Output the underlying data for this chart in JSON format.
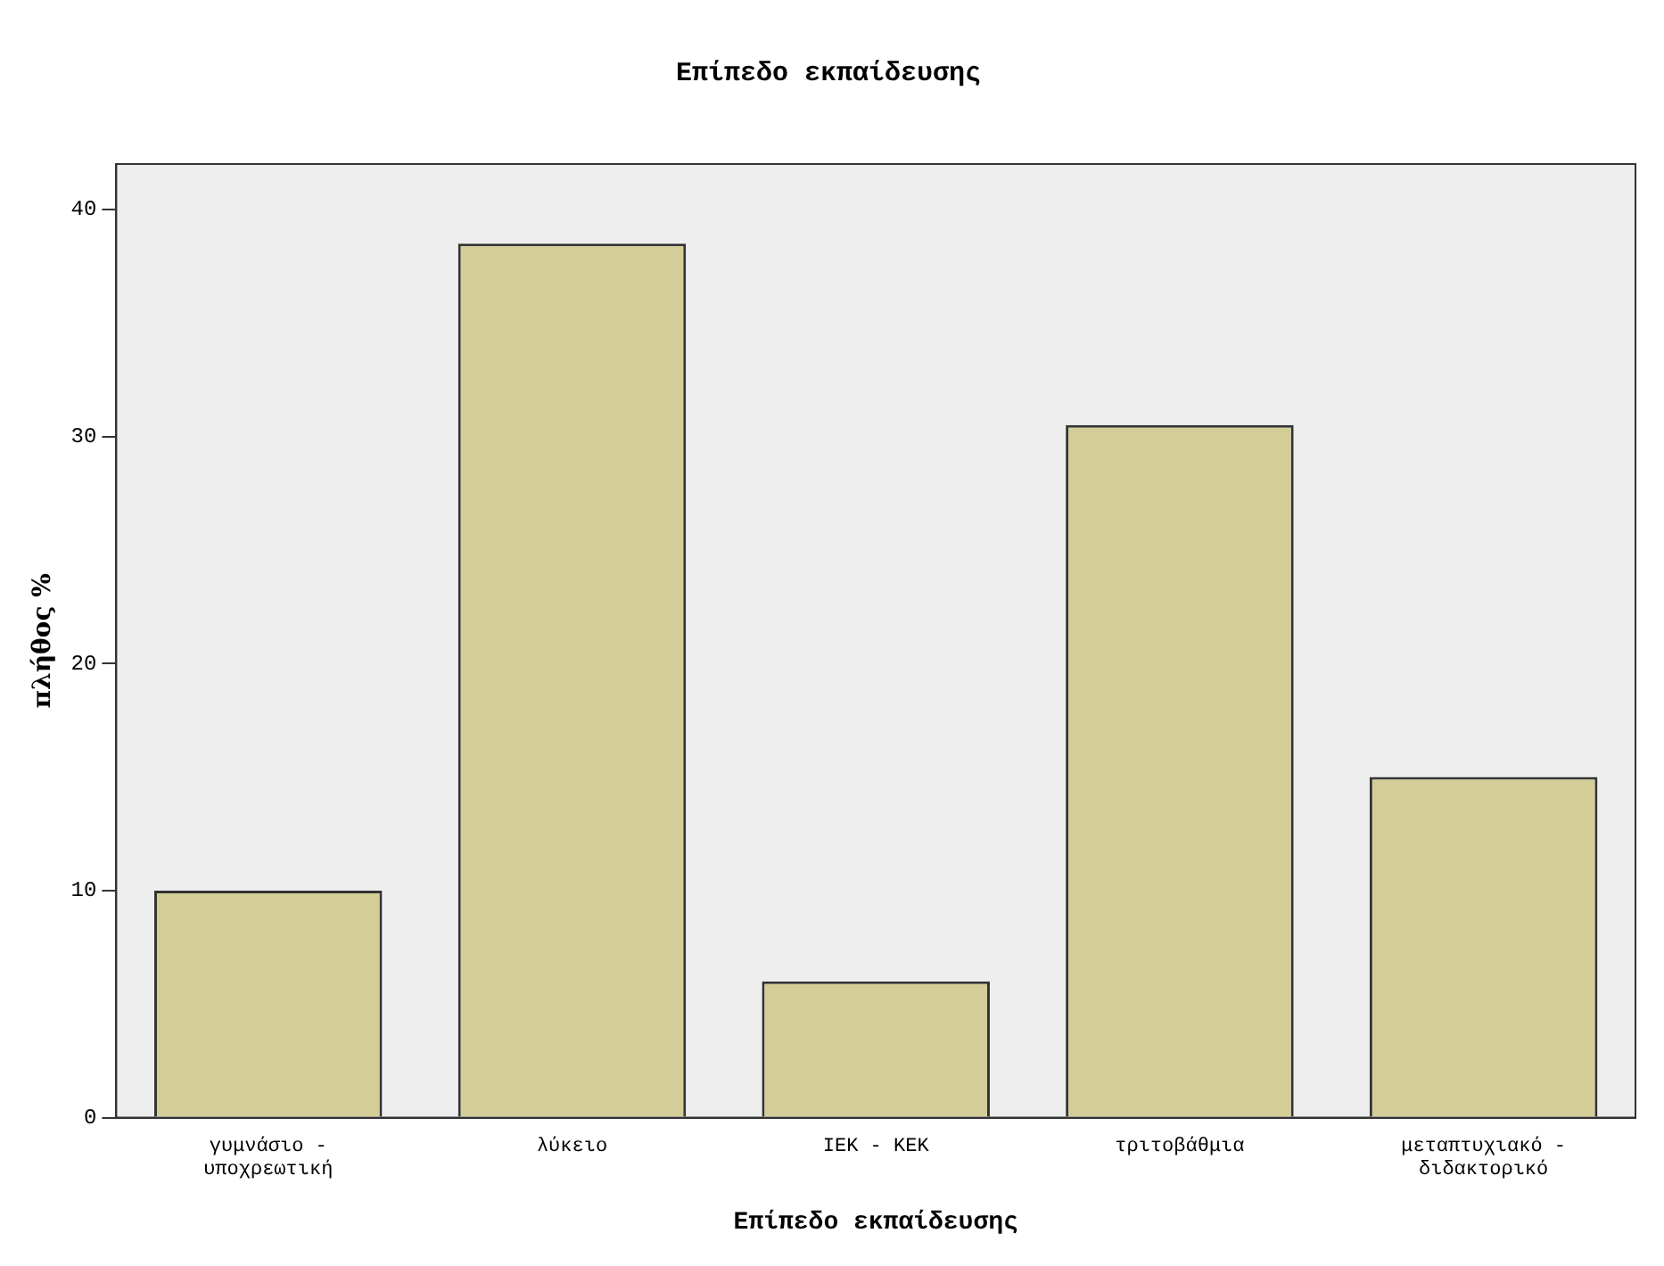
{
  "chart_data": {
    "type": "bar",
    "title": "Επίπεδο εκπαίδευσης",
    "xlabel": "Επίπεδο εκπαίδευσης",
    "ylabel": "πλήθος %",
    "categories": [
      "γυμνάσιο - υποχρεωτική",
      "λύκειο",
      "ΙΕΚ - ΚΕΚ",
      "τριτοβάθμια",
      "μεταπτυχιακό - διδακτορικό"
    ],
    "values": [
      10,
      38.5,
      6,
      30.5,
      15
    ],
    "color": "#d3ce97",
    "ylim": [
      0,
      42
    ],
    "yticks": [
      0,
      10,
      20,
      30,
      40
    ],
    "grid": false,
    "legend": false
  }
}
